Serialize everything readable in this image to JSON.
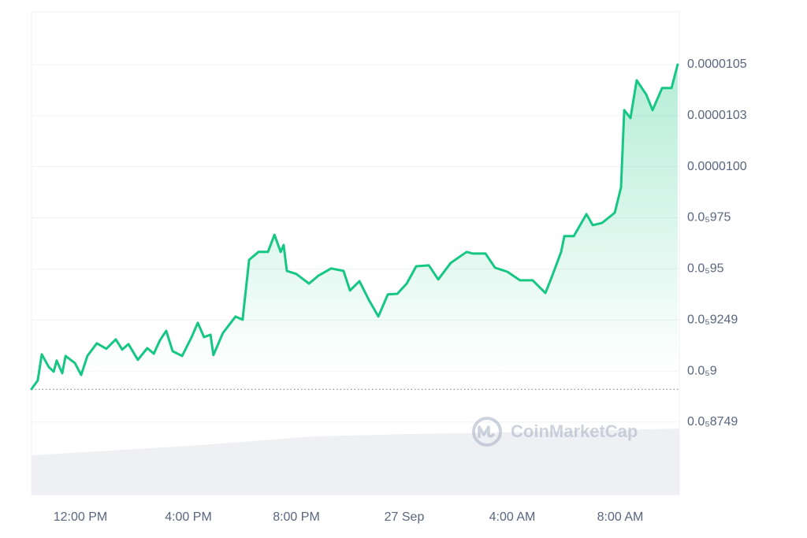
{
  "chart_data": {
    "type": "line",
    "color": "#16c784",
    "grid": true,
    "watermark": "CoinMarketCap",
    "reference_value": 8.91e-06,
    "xlim": [
      10.19,
      34.19
    ],
    "xticks": [
      {
        "value": 12,
        "label": "12:00 PM"
      },
      {
        "value": 16,
        "label": "4:00 PM"
      },
      {
        "value": 20,
        "label": "8:00 PM"
      },
      {
        "value": 24,
        "label": "27 Sep"
      },
      {
        "value": 28,
        "label": "4:00 AM"
      },
      {
        "value": 32,
        "label": "8:00 AM"
      }
    ],
    "ylim": [
      8.395e-06,
      1.0758e-05
    ],
    "yticks": [
      {
        "value": 1.05e-05,
        "label": "0.0000105"
      },
      {
        "value": 1.025e-05,
        "label": "0.0000103"
      },
      {
        "value": 1e-05,
        "label": "0.0000100"
      },
      {
        "value": 9.75e-06,
        "label": "0.0₅975"
      },
      {
        "value": 9.5e-06,
        "label": "0.0₅95"
      },
      {
        "value": 9.25e-06,
        "label": "0.0₅9249"
      },
      {
        "value": 9e-06,
        "label": "0.0₅9"
      },
      {
        "value": 8.75e-06,
        "label": "0.0₅8749"
      }
    ],
    "x": [
      10.19,
      10.42,
      10.57,
      10.83,
      11.01,
      11.12,
      11.33,
      11.45,
      11.8,
      12.03,
      12.26,
      12.61,
      12.96,
      13.31,
      13.55,
      13.78,
      14.13,
      14.48,
      14.72,
      14.95,
      15.18,
      15.42,
      15.77,
      16.12,
      16.35,
      16.58,
      16.82,
      16.93,
      17.28,
      17.75,
      18.01,
      18.25,
      18.6,
      18.95,
      19.19,
      19.42,
      19.53,
      19.65,
      20.0,
      20.47,
      20.82,
      21.29,
      21.75,
      21.99,
      22.34,
      22.69,
      23.04,
      23.39,
      23.74,
      24.09,
      24.44,
      24.91,
      25.26,
      25.72,
      26.31,
      26.54,
      27.01,
      27.36,
      27.82,
      28.29,
      28.76,
      29.23,
      29.46,
      29.81,
      29.93,
      30.28,
      30.75,
      30.98,
      31.33,
      31.8,
      32.03,
      32.15,
      32.38,
      32.61,
      32.96,
      33.2,
      33.55,
      33.9,
      34.13
    ],
    "values": [
      8.912e-06,
      8.954e-06,
      9.082e-06,
      9.02e-06,
      8.997e-06,
      9.051e-06,
      8.989e-06,
      9.074e-06,
      9.039e-06,
      8.981e-06,
      9.074e-06,
      9.136e-06,
      9.109e-06,
      9.155e-06,
      9.105e-06,
      9.132e-06,
      9.055e-06,
      9.112e-06,
      9.085e-06,
      9.151e-06,
      9.197e-06,
      9.097e-06,
      9.074e-06,
      9.166e-06,
      9.236e-06,
      9.166e-06,
      9.178e-06,
      9.078e-06,
      9.186e-06,
      9.267e-06,
      9.251e-06,
      9.544e-06,
      9.583e-06,
      9.583e-06,
      9.667e-06,
      9.583e-06,
      9.617e-06,
      9.49e-06,
      9.475e-06,
      9.428e-06,
      9.467e-06,
      9.502e-06,
      9.49e-06,
      9.394e-06,
      9.44e-06,
      9.348e-06,
      9.267e-06,
      9.375e-06,
      9.378e-06,
      9.428e-06,
      9.513e-06,
      9.517e-06,
      9.448e-06,
      9.529e-06,
      9.583e-06,
      9.575e-06,
      9.575e-06,
      9.506e-06,
      9.486e-06,
      9.444e-06,
      9.444e-06,
      9.382e-06,
      9.459e-06,
      9.583e-06,
      9.66e-06,
      9.66e-06,
      9.768e-06,
      9.714e-06,
      9.725e-06,
      9.775e-06,
      9.899e-06,
      1.0277e-05,
      1.0238e-05,
      1.0423e-05,
      1.0354e-05,
      1.0277e-05,
      1.0385e-05,
      1.0385e-05,
      1.05e-05
    ]
  }
}
